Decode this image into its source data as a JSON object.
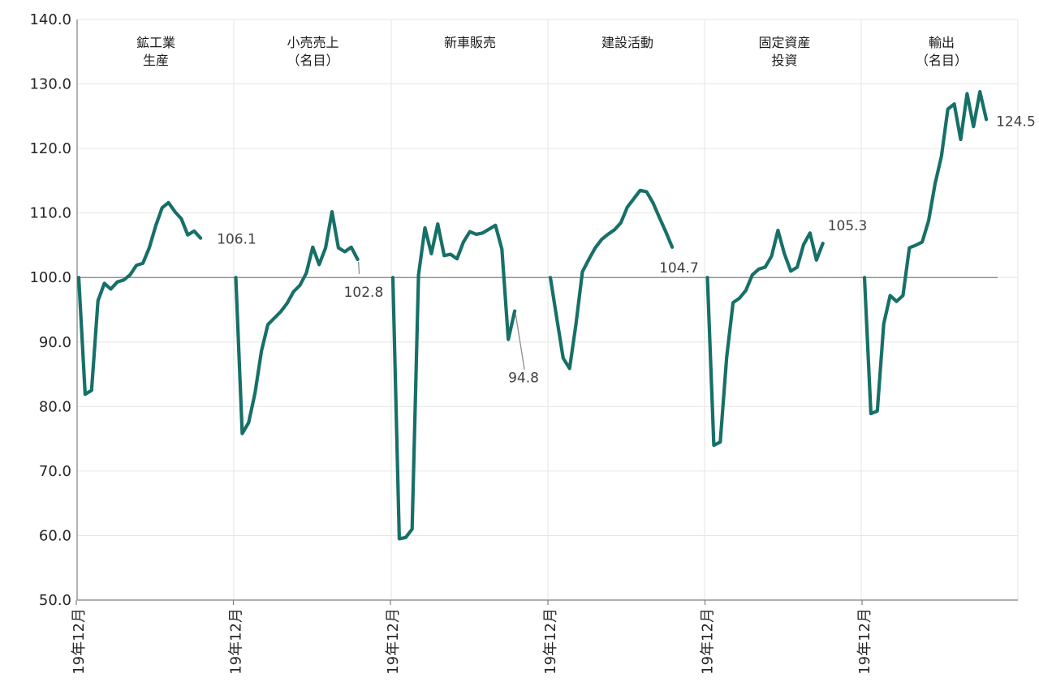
{
  "chart_data": {
    "type": "line",
    "ylim": [
      50,
      140
    ],
    "yticks": [
      "50.0",
      "60.0",
      "70.0",
      "80.0",
      "90.0",
      "100.0",
      "110.0",
      "120.0",
      "130.0",
      "140.0"
    ],
    "baseline": 100,
    "grid": true,
    "series_color": "#177068",
    "panels": [
      {
        "title": [
          "鉱工業",
          "生産"
        ],
        "x_start_label": "19年12月",
        "values": [
          100.0,
          81.9,
          82.5,
          96.4,
          99.1,
          98.2,
          99.3,
          99.6,
          100.4,
          101.9,
          102.2,
          104.6,
          108.0,
          110.8,
          111.6,
          110.2,
          109.1,
          106.6,
          107.2,
          106.1
        ],
        "end_label": "106.1"
      },
      {
        "title": [
          "小売売上",
          "（名目）"
        ],
        "x_start_label": "19年12月",
        "values": [
          100.0,
          75.8,
          77.5,
          82.1,
          88.6,
          92.7,
          93.7,
          94.7,
          96.0,
          97.8,
          98.8,
          100.7,
          104.7,
          102.0,
          104.6,
          110.2,
          104.6,
          104.0,
          104.7,
          102.8
        ],
        "end_label": "102.8"
      },
      {
        "title": [
          "新車販売"
        ],
        "x_start_label": "19年12月",
        "values": [
          100.0,
          59.5,
          59.7,
          61.0,
          100.4,
          107.7,
          103.7,
          108.3,
          103.4,
          103.6,
          102.9,
          105.5,
          107.1,
          106.7,
          106.9,
          107.5,
          108.1,
          104.4,
          90.4,
          94.8
        ],
        "end_label": "94.8"
      },
      {
        "title": [
          "建設活動"
        ],
        "x_start_label": "19年12月",
        "values": [
          100.0,
          93.7,
          87.5,
          85.9,
          92.8,
          100.9,
          102.8,
          104.6,
          105.9,
          106.7,
          107.4,
          108.5,
          110.9,
          112.2,
          113.5,
          113.3,
          111.6,
          109.3,
          107.1,
          104.7
        ],
        "end_label": "104.7"
      },
      {
        "title": [
          "固定資産",
          "投資"
        ],
        "x_start_label": "19年12月",
        "values": [
          100.0,
          74.0,
          74.5,
          87.6,
          96.1,
          96.8,
          98.0,
          100.4,
          101.3,
          101.6,
          103.3,
          107.3,
          103.7,
          101.0,
          101.6,
          105.1,
          106.9,
          102.7,
          105.3
        ],
        "end_label": "105.3"
      },
      {
        "title": [
          "輸出",
          "（名目）"
        ],
        "x_start_label": "19年12月",
        "values": [
          100.0,
          78.9,
          79.3,
          92.8,
          97.2,
          96.3,
          97.2,
          104.6,
          105.0,
          105.5,
          108.8,
          114.5,
          118.8,
          126.1,
          126.9,
          121.4,
          128.5,
          123.4,
          128.8,
          124.5
        ],
        "end_label": "124.5"
      }
    ]
  }
}
